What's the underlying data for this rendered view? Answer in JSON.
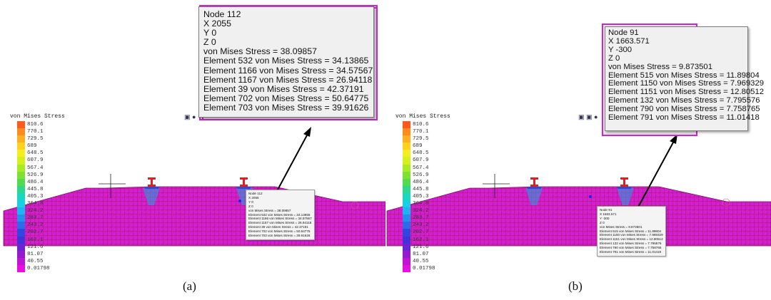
{
  "legend": {
    "title": "von Mises Stress",
    "labels": [
      "810.6",
      "770.1",
      "729.5",
      "689",
      "648.5",
      "607.9",
      "567.4",
      "526.9",
      "486.4",
      "445.8",
      "405.3",
      "364.8",
      "324.2",
      "283.7",
      "243.2",
      "202.7",
      "162.1",
      "121.6",
      "81.07",
      "40.55",
      "0.01798"
    ],
    "colors": [
      "#ff5a1e",
      "#ff8a1e",
      "#ffb020",
      "#ffd21e",
      "#f4ee1e",
      "#d6f01e",
      "#aaea22",
      "#7ee030",
      "#52da50",
      "#2ed88a",
      "#1ad8c0",
      "#1acee6",
      "#1eb4f0",
      "#2490ec",
      "#2c6ce6",
      "#3048e0",
      "#4232d8",
      "#6a24d2",
      "#9618d0",
      "#c212d2",
      "#e80ee2"
    ]
  },
  "toolbar_icons": {
    "a": "▣ ●",
    "b": "▣ ▣ ●"
  },
  "panels": {
    "a": {
      "caption": "(a)",
      "tooltip": [
        "Node  112",
        "X  2055",
        "Y  0",
        "Z  0",
        "von Mises Stress = 38.09857",
        "Element 532 von Mises Stress = 34.13865",
        "Element 1166 von Mises Stress = 34.57567",
        "Element 1167 von Mises Stress = 26.94118",
        "Element 39 von Mises Stress = 42.37191",
        "Element 702 von Mises Stress = 50.64775",
        "Element 703 von Mises Stress = 39.91626"
      ]
    },
    "b": {
      "caption": "(b)",
      "tooltip": [
        "Node  91",
        "X  1663.571",
        "Y  -300",
        "Z  0",
        "von Mises Stress = 9.873501",
        "Element 515 von Mises Stress = 11.89804",
        "Element 1150 von Mises Stress = 7.969329",
        "Element 1151 von Mises Stress = 12.80512",
        "Element 132 von Mises Stress = 7.795576",
        "Element 790 von Mises Stress = 7.758765",
        "Element 791 von Mises Stress = 11.01418"
      ]
    }
  },
  "colors": {
    "mesh_fill": "#d020d8",
    "mesh_lines": "#b01020",
    "highlight": "#1aa8d8",
    "marker": "#2222dd",
    "arrow": "#000000"
  }
}
